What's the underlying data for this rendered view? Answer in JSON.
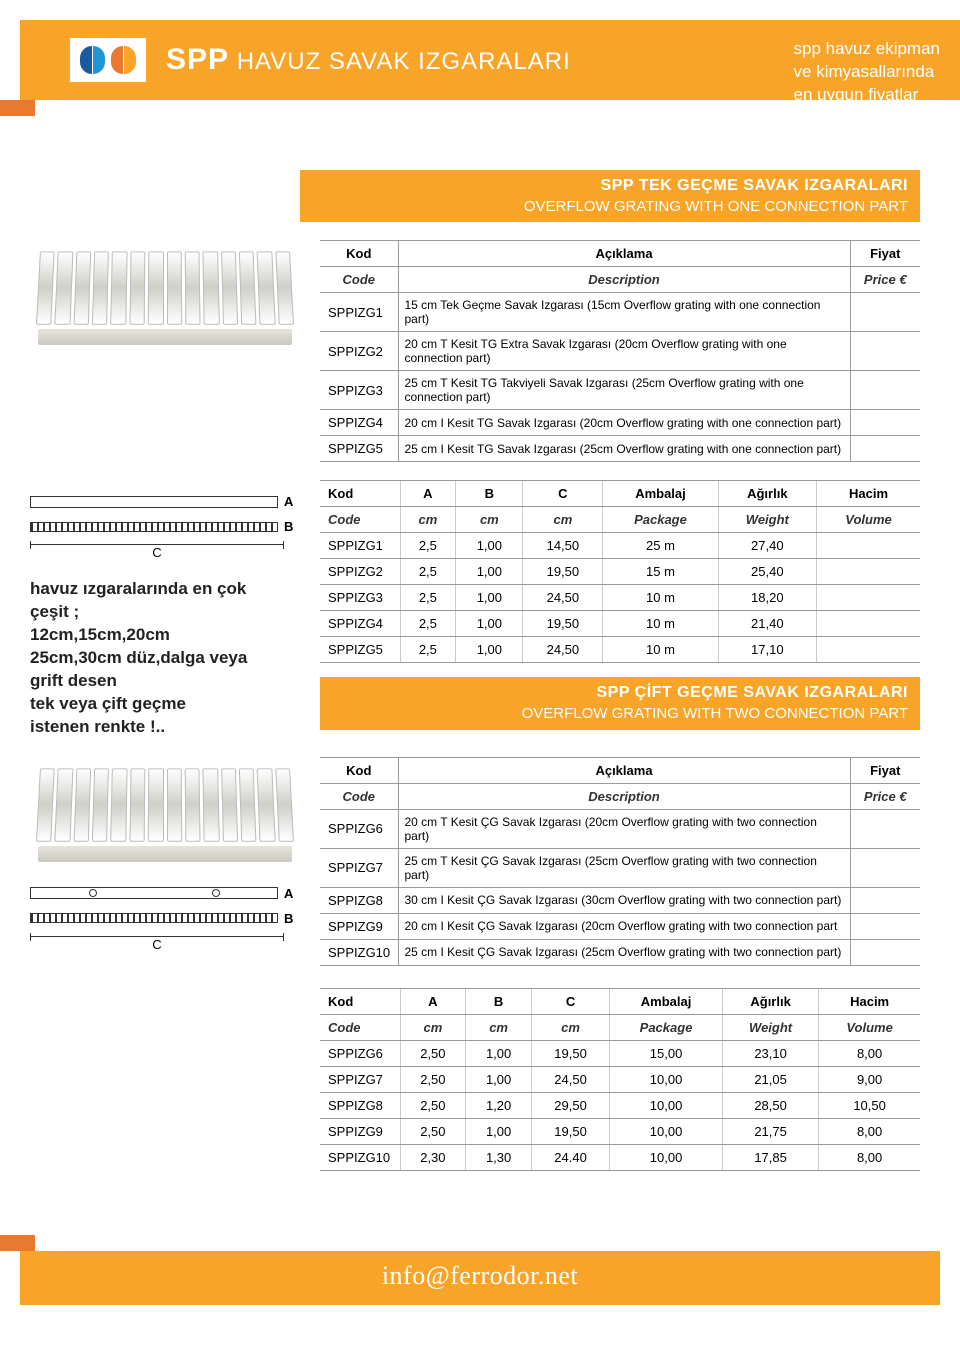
{
  "header": {
    "brand_prefix": "SPP",
    "title": "HAVUZ SAVAK IZGARALARI",
    "tagline1": "spp havuz ekipman",
    "tagline2": "ve kimyasallarında",
    "tagline3": "en uygun fiyatlar"
  },
  "section1": {
    "title_tr": "SPP TEK GEÇME SAVAK IZGARALARI",
    "title_en": "OVERFLOW GRATING WITH ONE CONNECTION PART"
  },
  "section2": {
    "title_tr": "SPP ÇİFT GEÇME SAVAK IZGARALARI",
    "title_en": "OVERFLOW GRATING WITH TWO CONNECTION PART"
  },
  "th": {
    "kod": "Kod",
    "code": "Code",
    "aciklama": "Açıklama",
    "description": "Description",
    "fiyat": "Fiyat",
    "price": "Price €",
    "a": "A",
    "b": "B",
    "c": "C",
    "cm": "cm",
    "ambalaj": "Ambalaj",
    "package": "Package",
    "agirlik": "Ağırlık",
    "weight": "Weight",
    "hacim": "Hacim",
    "volume": "Volume"
  },
  "t1_rows": [
    {
      "code": "SPPIZG1",
      "desc": "15 cm Tek Geçme Savak Izgarası (15cm Overflow grating with one connection part)"
    },
    {
      "code": "SPPIZG2",
      "desc": "20 cm T Kesit TG Extra Savak Izgarası (20cm Overflow grating with one connection part)"
    },
    {
      "code": "SPPIZG3",
      "desc": "25 cm T Kesit TG Takviyeli Savak Izgarası (25cm Overflow grating with one connection part)"
    },
    {
      "code": "SPPIZG4",
      "desc": "20 cm I Kesit TG Savak Izgarası (20cm Overflow grating with one connection part)"
    },
    {
      "code": "SPPIZG5",
      "desc": "25 cm I Kesit TG Savak Izgarası (25cm Overflow grating with one connection part)"
    }
  ],
  "t2_rows": [
    {
      "code": "SPPIZG1",
      "a": "2,5",
      "b": "1,00",
      "c": "14,50",
      "pkg": "25 m",
      "wt": "27,40",
      "vol": ""
    },
    {
      "code": "SPPIZG2",
      "a": "2,5",
      "b": "1,00",
      "c": "19,50",
      "pkg": "15 m",
      "wt": "25,40",
      "vol": ""
    },
    {
      "code": "SPPIZG3",
      "a": "2,5",
      "b": "1,00",
      "c": "24,50",
      "pkg": "10 m",
      "wt": "18,20",
      "vol": ""
    },
    {
      "code": "SPPIZG4",
      "a": "2,5",
      "b": "1,00",
      "c": "19,50",
      "pkg": "10 m",
      "wt": "21,40",
      "vol": ""
    },
    {
      "code": "SPPIZG5",
      "a": "2,5",
      "b": "1,00",
      "c": "24,50",
      "pkg": "10 m",
      "wt": "17,10",
      "vol": ""
    }
  ],
  "t3_rows": [
    {
      "code": "SPPIZG6",
      "desc": "20 cm T Kesit ÇG Savak Izgarası (20cm Overflow grating with two connection part)"
    },
    {
      "code": "SPPIZG7",
      "desc": "25 cm T Kesit ÇG Savak Izgarası (25cm Overflow grating with two connection part)"
    },
    {
      "code": "SPPIZG8",
      "desc": "30 cm I Kesit ÇG Savak Izgarası (30cm Overflow grating with two connection part)"
    },
    {
      "code": "SPPIZG9",
      "desc": "20 cm I Kesit ÇG Savak Izgarası (20cm Overflow grating with two connection part"
    },
    {
      "code": "SPPIZG10",
      "desc": "25 cm I Kesit ÇG Savak Izgarası (25cm Overflow grating with two connection part)"
    }
  ],
  "t4_rows": [
    {
      "code": "SPPIZG6",
      "a": "2,50",
      "b": "1,00",
      "c": "19,50",
      "pkg": "15,00",
      "wt": "23,10",
      "vol": "8,00"
    },
    {
      "code": "SPPIZG7",
      "a": "2,50",
      "b": "1,00",
      "c": "24,50",
      "pkg": "10,00",
      "wt": "21,05",
      "vol": "9,00"
    },
    {
      "code": "SPPIZG8",
      "a": "2,50",
      "b": "1,20",
      "c": "29,50",
      "pkg": "10,00",
      "wt": "28,50",
      "vol": "10,50"
    },
    {
      "code": "SPPIZG9",
      "a": "2,50",
      "b": "1,00",
      "c": "19,50",
      "pkg": "10,00",
      "wt": "21,75",
      "vol": "8,00"
    },
    {
      "code": "SPPIZG10",
      "a": "2,30",
      "b": "1,30",
      "c": "24.40",
      "pkg": "10,00",
      "wt": "17,85",
      "vol": "8,00"
    }
  ],
  "diag": {
    "a": "A",
    "b": "B",
    "c": "C"
  },
  "sidetext": {
    "l1": "havuz ızgaralarında en çok",
    "l2": "çeşit ;",
    "l3": "12cm,15cm,20cm",
    "l4": "25cm,30cm düz,dalga veya",
    "l5": "grift desen",
    "l6": "tek veya çift geçme",
    "l7": "istenen renkte !.."
  },
  "footer": {
    "email": "info@ferrodor.net"
  },
  "colors": {
    "orange": "#f7a428",
    "dark_orange": "#e8792e"
  }
}
